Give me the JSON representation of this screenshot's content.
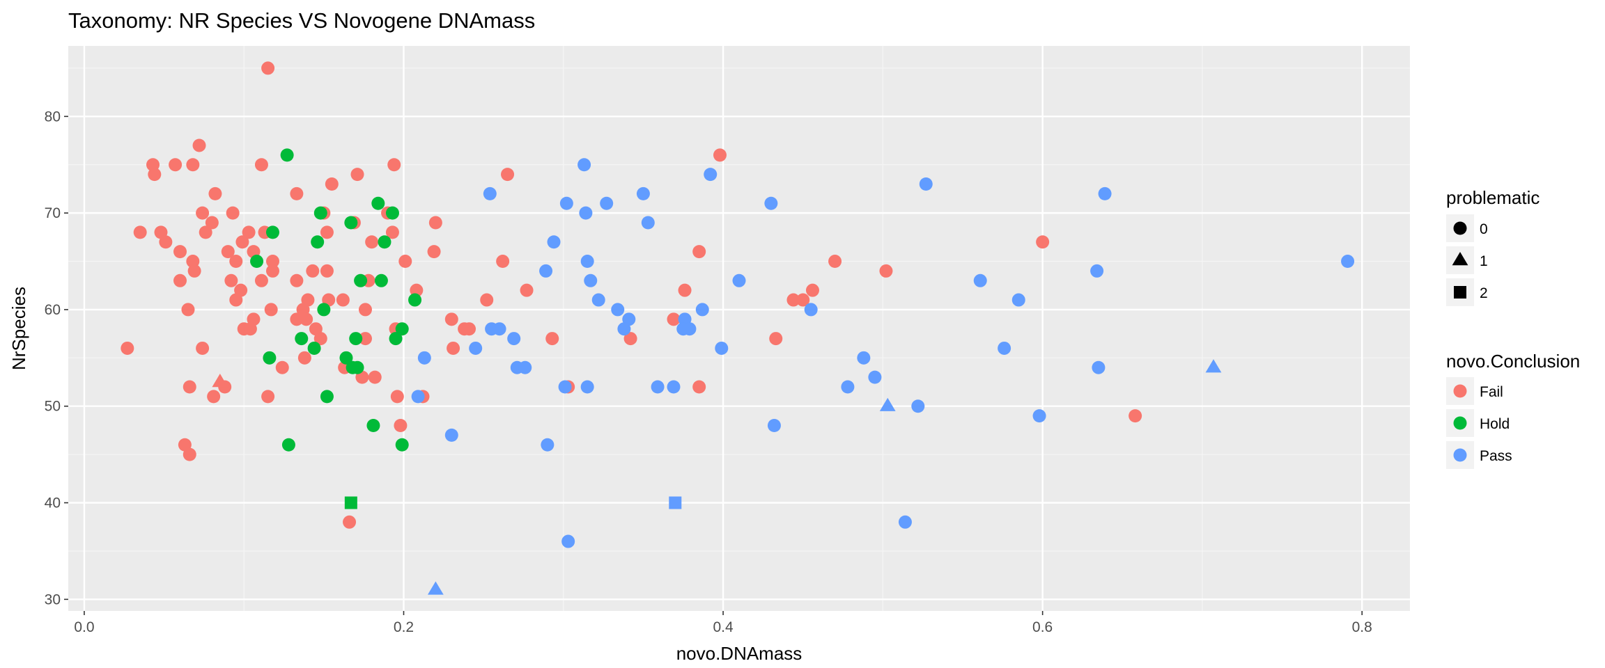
{
  "chart_data": {
    "type": "scatter",
    "title": "Taxonomy: NR Species VS Novogene DNAmass",
    "xlabel": "novo.DNAmass",
    "ylabel": "NrSpecies",
    "xlim": [
      -0.01,
      0.83
    ],
    "ylim": [
      28.8,
      87.3
    ],
    "xticks": [
      0.0,
      0.2,
      0.4,
      0.6,
      0.8
    ],
    "xtick_labels": [
      "0.0",
      "0.2",
      "0.4",
      "0.6",
      "0.8"
    ],
    "yticks": [
      30,
      40,
      50,
      60,
      70,
      80
    ],
    "ytick_labels": [
      "30",
      "40",
      "50",
      "60",
      "70",
      "80"
    ],
    "grid": true,
    "legend_position": "right",
    "legend_shape": {
      "title": "problematic",
      "items": [
        {
          "label": "0",
          "shape": "circle"
        },
        {
          "label": "1",
          "shape": "triangle"
        },
        {
          "label": "2",
          "shape": "square"
        }
      ]
    },
    "legend_color": {
      "title": "novo.Conclusion",
      "items": [
        {
          "label": "Fail",
          "color": "#F8766D"
        },
        {
          "label": "Hold",
          "color": "#00BA38"
        },
        {
          "label": "Pass",
          "color": "#619CFF"
        }
      ]
    },
    "series": [
      {
        "name": "Fail",
        "color": "#F8766D",
        "points": [
          {
            "x": 0.115,
            "y": 85,
            "p": 0
          },
          {
            "x": 0.072,
            "y": 77,
            "p": 0
          },
          {
            "x": 0.043,
            "y": 75,
            "p": 0
          },
          {
            "x": 0.057,
            "y": 75,
            "p": 0
          },
          {
            "x": 0.068,
            "y": 75,
            "p": 0
          },
          {
            "x": 0.111,
            "y": 75,
            "p": 0
          },
          {
            "x": 0.194,
            "y": 75,
            "p": 0
          },
          {
            "x": 0.044,
            "y": 74,
            "p": 0
          },
          {
            "x": 0.171,
            "y": 74,
            "p": 0
          },
          {
            "x": 0.265,
            "y": 74,
            "p": 0
          },
          {
            "x": 0.155,
            "y": 73,
            "p": 0
          },
          {
            "x": 0.133,
            "y": 72,
            "p": 0
          },
          {
            "x": 0.082,
            "y": 72,
            "p": 0
          },
          {
            "x": 0.074,
            "y": 70,
            "p": 0
          },
          {
            "x": 0.093,
            "y": 70,
            "p": 0
          },
          {
            "x": 0.15,
            "y": 70,
            "p": 0
          },
          {
            "x": 0.19,
            "y": 70,
            "p": 0
          },
          {
            "x": 0.08,
            "y": 69,
            "p": 0
          },
          {
            "x": 0.169,
            "y": 69,
            "p": 0
          },
          {
            "x": 0.22,
            "y": 69,
            "p": 0
          },
          {
            "x": 0.035,
            "y": 68,
            "p": 0
          },
          {
            "x": 0.048,
            "y": 68,
            "p": 0
          },
          {
            "x": 0.076,
            "y": 68,
            "p": 0
          },
          {
            "x": 0.103,
            "y": 68,
            "p": 0
          },
          {
            "x": 0.113,
            "y": 68,
            "p": 0
          },
          {
            "x": 0.152,
            "y": 68,
            "p": 0
          },
          {
            "x": 0.193,
            "y": 68,
            "p": 0
          },
          {
            "x": 0.051,
            "y": 67,
            "p": 0
          },
          {
            "x": 0.099,
            "y": 67,
            "p": 0
          },
          {
            "x": 0.18,
            "y": 67,
            "p": 0
          },
          {
            "x": 0.06,
            "y": 66,
            "p": 0
          },
          {
            "x": 0.09,
            "y": 66,
            "p": 0
          },
          {
            "x": 0.106,
            "y": 66,
            "p": 0
          },
          {
            "x": 0.219,
            "y": 66,
            "p": 0
          },
          {
            "x": 0.385,
            "y": 66,
            "p": 0
          },
          {
            "x": 0.068,
            "y": 65,
            "p": 0
          },
          {
            "x": 0.095,
            "y": 65,
            "p": 0
          },
          {
            "x": 0.118,
            "y": 65,
            "p": 0
          },
          {
            "x": 0.201,
            "y": 65,
            "p": 0
          },
          {
            "x": 0.262,
            "y": 65,
            "p": 0
          },
          {
            "x": 0.47,
            "y": 65,
            "p": 0
          },
          {
            "x": 0.069,
            "y": 64,
            "p": 0
          },
          {
            "x": 0.118,
            "y": 64,
            "p": 0
          },
          {
            "x": 0.143,
            "y": 64,
            "p": 0
          },
          {
            "x": 0.152,
            "y": 64,
            "p": 0
          },
          {
            "x": 0.502,
            "y": 64,
            "p": 0
          },
          {
            "x": 0.06,
            "y": 63,
            "p": 0
          },
          {
            "x": 0.092,
            "y": 63,
            "p": 0
          },
          {
            "x": 0.111,
            "y": 63,
            "p": 0
          },
          {
            "x": 0.133,
            "y": 63,
            "p": 0
          },
          {
            "x": 0.178,
            "y": 63,
            "p": 0
          },
          {
            "x": 0.098,
            "y": 62,
            "p": 0
          },
          {
            "x": 0.208,
            "y": 62,
            "p": 0
          },
          {
            "x": 0.277,
            "y": 62,
            "p": 0
          },
          {
            "x": 0.376,
            "y": 62,
            "p": 0
          },
          {
            "x": 0.456,
            "y": 62,
            "p": 0
          },
          {
            "x": 0.095,
            "y": 61,
            "p": 0
          },
          {
            "x": 0.14,
            "y": 61,
            "p": 0
          },
          {
            "x": 0.153,
            "y": 61,
            "p": 0
          },
          {
            "x": 0.162,
            "y": 61,
            "p": 0
          },
          {
            "x": 0.252,
            "y": 61,
            "p": 0
          },
          {
            "x": 0.444,
            "y": 61,
            "p": 0
          },
          {
            "x": 0.45,
            "y": 61,
            "p": 0
          },
          {
            "x": 0.065,
            "y": 60,
            "p": 0
          },
          {
            "x": 0.117,
            "y": 60,
            "p": 0
          },
          {
            "x": 0.137,
            "y": 60,
            "p": 0
          },
          {
            "x": 0.176,
            "y": 60,
            "p": 0
          },
          {
            "x": 0.106,
            "y": 59,
            "p": 0
          },
          {
            "x": 0.133,
            "y": 59,
            "p": 0
          },
          {
            "x": 0.139,
            "y": 59,
            "p": 0
          },
          {
            "x": 0.23,
            "y": 59,
            "p": 0
          },
          {
            "x": 0.369,
            "y": 59,
            "p": 0
          },
          {
            "x": 0.1,
            "y": 58,
            "p": 0
          },
          {
            "x": 0.104,
            "y": 58,
            "p": 0
          },
          {
            "x": 0.145,
            "y": 58,
            "p": 0
          },
          {
            "x": 0.195,
            "y": 58,
            "p": 0
          },
          {
            "x": 0.238,
            "y": 58,
            "p": 0
          },
          {
            "x": 0.241,
            "y": 58,
            "p": 0
          },
          {
            "x": 0.148,
            "y": 57,
            "p": 0
          },
          {
            "x": 0.176,
            "y": 57,
            "p": 0
          },
          {
            "x": 0.293,
            "y": 57,
            "p": 0
          },
          {
            "x": 0.342,
            "y": 57,
            "p": 0
          },
          {
            "x": 0.433,
            "y": 57,
            "p": 0
          },
          {
            "x": 0.027,
            "y": 56,
            "p": 0
          },
          {
            "x": 0.074,
            "y": 56,
            "p": 0
          },
          {
            "x": 0.231,
            "y": 56,
            "p": 0
          },
          {
            "x": 0.138,
            "y": 55,
            "p": 0
          },
          {
            "x": 0.163,
            "y": 54,
            "p": 0
          },
          {
            "x": 0.124,
            "y": 54,
            "p": 0
          },
          {
            "x": 0.174,
            "y": 53,
            "p": 0
          },
          {
            "x": 0.182,
            "y": 53,
            "p": 0
          },
          {
            "x": 0.066,
            "y": 52,
            "p": 0
          },
          {
            "x": 0.088,
            "y": 52,
            "p": 0
          },
          {
            "x": 0.303,
            "y": 52,
            "p": 0
          },
          {
            "x": 0.385,
            "y": 52,
            "p": 0
          },
          {
            "x": 0.081,
            "y": 51,
            "p": 0
          },
          {
            "x": 0.115,
            "y": 51,
            "p": 0
          },
          {
            "x": 0.196,
            "y": 51,
            "p": 0
          },
          {
            "x": 0.212,
            "y": 51,
            "p": 0
          },
          {
            "x": 0.658,
            "y": 49,
            "p": 0
          },
          {
            "x": 0.198,
            "y": 48,
            "p": 0
          },
          {
            "x": 0.063,
            "y": 46,
            "p": 0
          },
          {
            "x": 0.066,
            "y": 45,
            "p": 0
          },
          {
            "x": 0.166,
            "y": 38,
            "p": 0
          },
          {
            "x": 0.398,
            "y": 76,
            "p": 0
          },
          {
            "x": 0.6,
            "y": 67,
            "p": 0
          },
          {
            "x": 0.085,
            "y": 52.5,
            "p": 1
          }
        ]
      },
      {
        "name": "Hold",
        "color": "#00BA38",
        "points": [
          {
            "x": 0.127,
            "y": 76,
            "p": 0
          },
          {
            "x": 0.184,
            "y": 71,
            "p": 0
          },
          {
            "x": 0.148,
            "y": 70,
            "p": 0
          },
          {
            "x": 0.193,
            "y": 70,
            "p": 0
          },
          {
            "x": 0.167,
            "y": 69,
            "p": 0
          },
          {
            "x": 0.118,
            "y": 68,
            "p": 0
          },
          {
            "x": 0.146,
            "y": 67,
            "p": 0
          },
          {
            "x": 0.188,
            "y": 67,
            "p": 0
          },
          {
            "x": 0.108,
            "y": 65,
            "p": 0
          },
          {
            "x": 0.173,
            "y": 63,
            "p": 0
          },
          {
            "x": 0.186,
            "y": 63,
            "p": 0
          },
          {
            "x": 0.207,
            "y": 61,
            "p": 0
          },
          {
            "x": 0.15,
            "y": 60,
            "p": 0
          },
          {
            "x": 0.199,
            "y": 58,
            "p": 0
          },
          {
            "x": 0.136,
            "y": 57,
            "p": 0
          },
          {
            "x": 0.17,
            "y": 57,
            "p": 0
          },
          {
            "x": 0.195,
            "y": 57,
            "p": 0
          },
          {
            "x": 0.144,
            "y": 56,
            "p": 0
          },
          {
            "x": 0.116,
            "y": 55,
            "p": 0
          },
          {
            "x": 0.164,
            "y": 55,
            "p": 0
          },
          {
            "x": 0.168,
            "y": 54,
            "p": 0
          },
          {
            "x": 0.171,
            "y": 54,
            "p": 0
          },
          {
            "x": 0.152,
            "y": 51,
            "p": 0
          },
          {
            "x": 0.181,
            "y": 48,
            "p": 0
          },
          {
            "x": 0.128,
            "y": 46,
            "p": 0
          },
          {
            "x": 0.199,
            "y": 46,
            "p": 0
          },
          {
            "x": 0.167,
            "y": 40,
            "p": 2
          }
        ]
      },
      {
        "name": "Pass",
        "color": "#619CFF",
        "points": [
          {
            "x": 0.313,
            "y": 75,
            "p": 0
          },
          {
            "x": 0.392,
            "y": 74,
            "p": 0
          },
          {
            "x": 0.527,
            "y": 73,
            "p": 0
          },
          {
            "x": 0.254,
            "y": 72,
            "p": 0
          },
          {
            "x": 0.35,
            "y": 72,
            "p": 0
          },
          {
            "x": 0.639,
            "y": 72,
            "p": 0
          },
          {
            "x": 0.302,
            "y": 71,
            "p": 0
          },
          {
            "x": 0.327,
            "y": 71,
            "p": 0
          },
          {
            "x": 0.43,
            "y": 71,
            "p": 0
          },
          {
            "x": 0.314,
            "y": 70,
            "p": 0
          },
          {
            "x": 0.353,
            "y": 69,
            "p": 0
          },
          {
            "x": 0.294,
            "y": 67,
            "p": 0
          },
          {
            "x": 0.315,
            "y": 65,
            "p": 0
          },
          {
            "x": 0.791,
            "y": 65,
            "p": 0
          },
          {
            "x": 0.289,
            "y": 64,
            "p": 0
          },
          {
            "x": 0.634,
            "y": 64,
            "p": 0
          },
          {
            "x": 0.317,
            "y": 63,
            "p": 0
          },
          {
            "x": 0.41,
            "y": 63,
            "p": 0
          },
          {
            "x": 0.561,
            "y": 63,
            "p": 0
          },
          {
            "x": 0.322,
            "y": 61,
            "p": 0
          },
          {
            "x": 0.585,
            "y": 61,
            "p": 0
          },
          {
            "x": 0.334,
            "y": 60,
            "p": 0
          },
          {
            "x": 0.387,
            "y": 60,
            "p": 0
          },
          {
            "x": 0.455,
            "y": 60,
            "p": 0
          },
          {
            "x": 0.341,
            "y": 59,
            "p": 0
          },
          {
            "x": 0.376,
            "y": 59,
            "p": 0
          },
          {
            "x": 0.255,
            "y": 58,
            "p": 0
          },
          {
            "x": 0.26,
            "y": 58,
            "p": 0
          },
          {
            "x": 0.338,
            "y": 58,
            "p": 0
          },
          {
            "x": 0.375,
            "y": 58,
            "p": 0
          },
          {
            "x": 0.379,
            "y": 58,
            "p": 0
          },
          {
            "x": 0.269,
            "y": 57,
            "p": 0
          },
          {
            "x": 0.245,
            "y": 56,
            "p": 0
          },
          {
            "x": 0.399,
            "y": 56,
            "p": 0
          },
          {
            "x": 0.576,
            "y": 56,
            "p": 0
          },
          {
            "x": 0.213,
            "y": 55,
            "p": 0
          },
          {
            "x": 0.488,
            "y": 55,
            "p": 0
          },
          {
            "x": 0.271,
            "y": 54,
            "p": 0
          },
          {
            "x": 0.276,
            "y": 54,
            "p": 0
          },
          {
            "x": 0.635,
            "y": 54,
            "p": 0
          },
          {
            "x": 0.495,
            "y": 53,
            "p": 0
          },
          {
            "x": 0.301,
            "y": 52,
            "p": 0
          },
          {
            "x": 0.315,
            "y": 52,
            "p": 0
          },
          {
            "x": 0.359,
            "y": 52,
            "p": 0
          },
          {
            "x": 0.369,
            "y": 52,
            "p": 0
          },
          {
            "x": 0.478,
            "y": 52,
            "p": 0
          },
          {
            "x": 0.209,
            "y": 51,
            "p": 0
          },
          {
            "x": 0.522,
            "y": 50,
            "p": 0
          },
          {
            "x": 0.598,
            "y": 49,
            "p": 0
          },
          {
            "x": 0.432,
            "y": 48,
            "p": 0
          },
          {
            "x": 0.23,
            "y": 47,
            "p": 0
          },
          {
            "x": 0.29,
            "y": 46,
            "p": 0
          },
          {
            "x": 0.514,
            "y": 38,
            "p": 0
          },
          {
            "x": 0.303,
            "y": 36,
            "p": 0
          },
          {
            "x": 0.503,
            "y": 50,
            "p": 1
          },
          {
            "x": 0.707,
            "y": 54,
            "p": 1
          },
          {
            "x": 0.22,
            "y": 31,
            "p": 1
          },
          {
            "x": 0.37,
            "y": 40,
            "p": 2
          }
        ]
      }
    ]
  }
}
